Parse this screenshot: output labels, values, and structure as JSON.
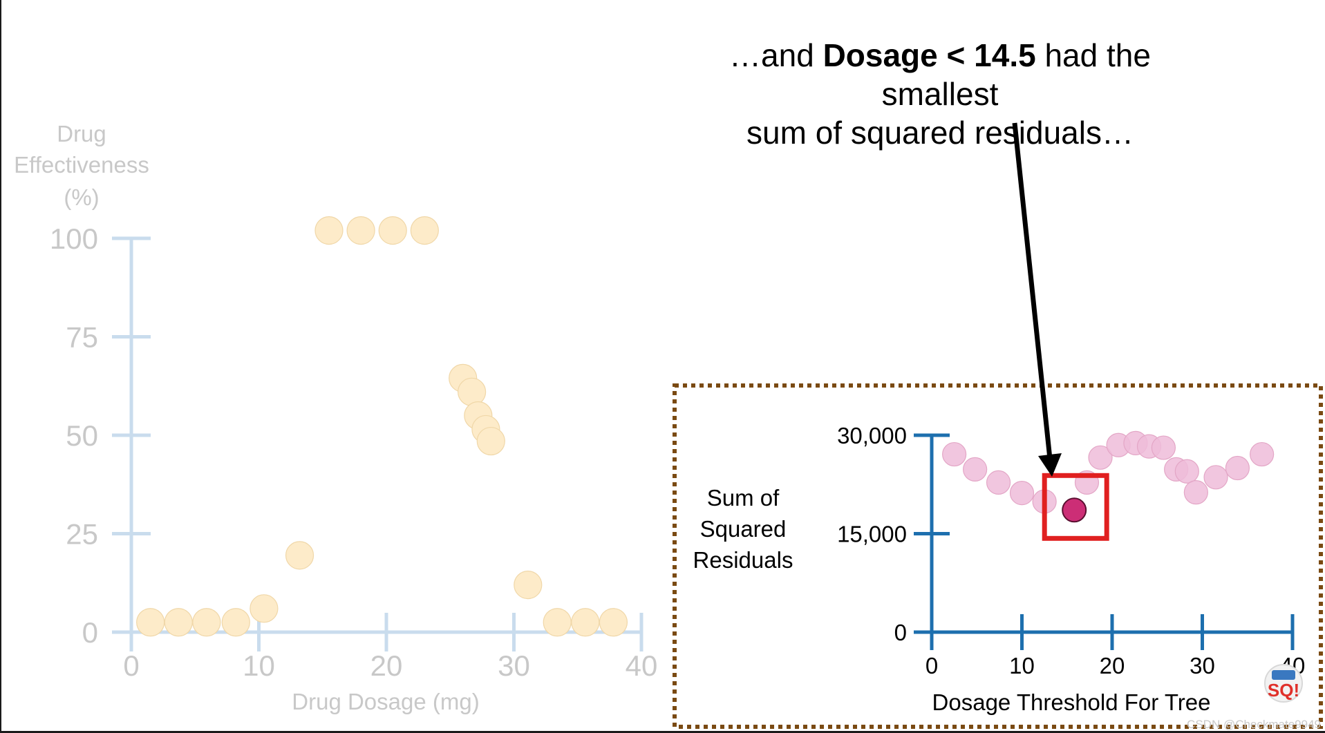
{
  "caption": {
    "prefix": "…and ",
    "bold": "Dosage < 14.5",
    "line1_suffix": " had the smallest",
    "line2": "sum of squared residuals…"
  },
  "colors": {
    "left_axis": "#c9dced",
    "left_text": "#c8c8c8",
    "left_points": "#fdebc9",
    "right_axis": "#1d6fae",
    "right_points": "#efbcd9",
    "highlight_point": "#cc2e76",
    "highlight_box": "#e02020",
    "dashed_border": "#7a4a12",
    "arrow": "#000000"
  },
  "icons": {
    "logo": "statquest-logo-icon"
  },
  "watermark": "CSDN @Checkmate9949",
  "chart_data": [
    {
      "type": "scatter",
      "ylabel": "Drug Effectiveness (%)",
      "ylabel_lines": [
        "Drug",
        "Effectiveness",
        "(%)"
      ],
      "xlabel": "Drug Dosage (mg)",
      "xlim": [
        0,
        40
      ],
      "ylim": [
        0,
        100
      ],
      "xticks": [
        0,
        10,
        20,
        30,
        40
      ],
      "yticks": [
        0,
        25,
        50,
        75,
        100
      ],
      "grid": false,
      "faded": true,
      "points": [
        {
          "x": 1.5,
          "y": 2.5
        },
        {
          "x": 3.7,
          "y": 2.5
        },
        {
          "x": 5.9,
          "y": 2.5
        },
        {
          "x": 8.2,
          "y": 2.5
        },
        {
          "x": 10.4,
          "y": 6
        },
        {
          "x": 13.2,
          "y": 19.5
        },
        {
          "x": 15.5,
          "y": 102
        },
        {
          "x": 18,
          "y": 102
        },
        {
          "x": 20.5,
          "y": 102
        },
        {
          "x": 23,
          "y": 102
        },
        {
          "x": 26,
          "y": 64.5
        },
        {
          "x": 26.7,
          "y": 61
        },
        {
          "x": 27.2,
          "y": 55
        },
        {
          "x": 27.8,
          "y": 51.5
        },
        {
          "x": 28.2,
          "y": 48.5
        },
        {
          "x": 31.1,
          "y": 12
        },
        {
          "x": 33.4,
          "y": 2.5
        },
        {
          "x": 35.6,
          "y": 2.5
        },
        {
          "x": 37.8,
          "y": 2.5
        }
      ]
    },
    {
      "type": "scatter",
      "ylabel": "Sum of Squared Residuals",
      "ylabel_lines": [
        "Sum of",
        "Squared",
        "Residuals"
      ],
      "xlabel": "Dosage Threshold For Tree",
      "xlim": [
        0,
        40
      ],
      "ylim": [
        0,
        30000
      ],
      "xticks": [
        0,
        10,
        20,
        30,
        40
      ],
      "yticks": [
        0,
        15000,
        30000
      ],
      "ytick_labels": [
        "0",
        "15,000",
        "30,000"
      ],
      "grid": false,
      "points": [
        {
          "x": 2.5,
          "y": 27100
        },
        {
          "x": 4.8,
          "y": 24800
        },
        {
          "x": 7.4,
          "y": 22800
        },
        {
          "x": 10,
          "y": 21200
        },
        {
          "x": 12.5,
          "y": 19900
        },
        {
          "x": 17.2,
          "y": 22800
        },
        {
          "x": 18.7,
          "y": 26600
        },
        {
          "x": 20.7,
          "y": 28500
        },
        {
          "x": 22.6,
          "y": 28800
        },
        {
          "x": 24.1,
          "y": 28300
        },
        {
          "x": 25.7,
          "y": 28100
        },
        {
          "x": 27.1,
          "y": 24800
        },
        {
          "x": 28.3,
          "y": 24500
        },
        {
          "x": 29.3,
          "y": 21300
        },
        {
          "x": 31.5,
          "y": 23600
        },
        {
          "x": 33.9,
          "y": 25000
        },
        {
          "x": 36.6,
          "y": 27100
        }
      ],
      "highlight": {
        "x": 15.8,
        "y": 18600,
        "label": "Dosage < 14.5"
      }
    }
  ]
}
